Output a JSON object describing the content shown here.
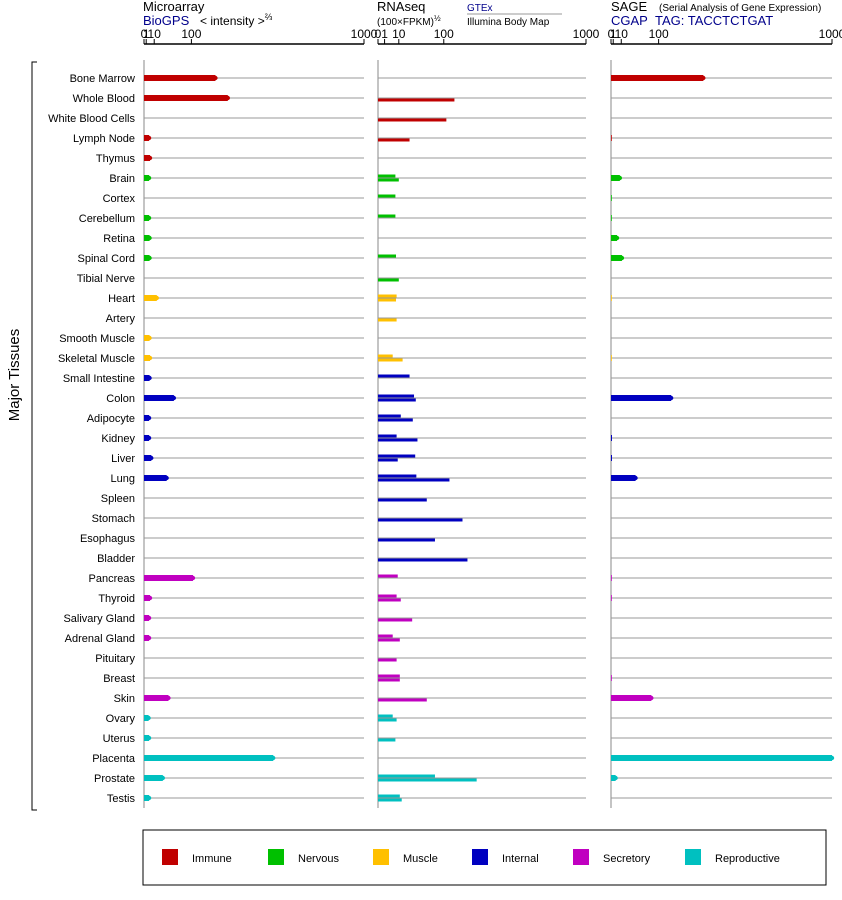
{
  "header": {
    "microarray": {
      "title": "Microarray",
      "source": "BioGPS",
      "unit": "< intensity >",
      "unit_exp": "⅔"
    },
    "rnaseq": {
      "title": "RNAseq",
      "unit": "(100×FPKM)",
      "unit_exp": "½",
      "source_1": "GTEx",
      "source_2": "Illumina Body Map"
    },
    "sage": {
      "title": "SAGE",
      "subtitle": "(Serial Analysis of Gene Expression)",
      "source": "CGAP",
      "tag": "TAG: TACCTCTGAT"
    }
  },
  "y_group_label": "Major Tissues",
  "colors": {
    "Immune": "#c00000",
    "Nervous": "#00c000",
    "Muscle": "#ffc000",
    "Internal": "#0000c0",
    "Secretory": "#c000c0",
    "Reproductive": "#00c0c0"
  },
  "legend": [
    "Immune",
    "Nervous",
    "Muscle",
    "Internal",
    "Secretory",
    "Reproductive"
  ],
  "chart_data": {
    "type": "bar",
    "orientation": "horizontal",
    "scale": "power-transformed (ticks 0, 1, 10, 100, 1000)",
    "ticks": [
      "0",
      "1",
      "10",
      "100",
      "1000"
    ],
    "ticks_num": [
      0,
      1,
      10,
      100,
      1000
    ],
    "xlim": [
      0,
      1000
    ],
    "panels": [
      "Microarray",
      "RNAseq",
      "SAGE"
    ],
    "tissues": [
      {
        "name": "Bone Marrow",
        "group": "Immune",
        "microarray": 185,
        "rnaseq": [],
        "sage": 270
      },
      {
        "name": "Whole Blood",
        "group": "Immune",
        "microarray": 235,
        "rnaseq": [
          0,
          135
        ],
        "sage": 0
      },
      {
        "name": "White Blood Cells",
        "group": "Immune",
        "microarray": 0,
        "rnaseq": [
          0,
          108
        ],
        "sage": 0
      },
      {
        "name": "Lymph Node",
        "group": "Immune",
        "microarray": 3.5,
        "rnaseq": [
          0,
          23
        ],
        "sage": 0.2
      },
      {
        "name": "Thymus",
        "group": "Immune",
        "microarray": 4.5,
        "rnaseq": [],
        "sage": 0
      },
      {
        "name": "Brain",
        "group": "Nervous",
        "microarray": 3.5,
        "rnaseq": [
          7,
          10
        ],
        "sage": 8
      },
      {
        "name": "Cortex",
        "group": "Nervous",
        "microarray": 0,
        "rnaseq": [
          7
        ],
        "sage": 0.1
      },
      {
        "name": "Cerebellum",
        "group": "Nervous",
        "microarray": 3.5,
        "rnaseq": [
          7
        ],
        "sage": 0.1
      },
      {
        "name": "Retina",
        "group": "Nervous",
        "microarray": 4,
        "rnaseq": [],
        "sage": 4.5
      },
      {
        "name": "Spinal Cord",
        "group": "Nervous",
        "microarray": 4,
        "rnaseq": [
          7.5
        ],
        "sage": 11
      },
      {
        "name": "Tibial Nerve",
        "group": "Nervous",
        "microarray": 0,
        "rnaseq": [
          0,
          10
        ],
        "sage": 0
      },
      {
        "name": "Heart",
        "group": "Muscle",
        "microarray": 14,
        "rnaseq": [
          8,
          7.5
        ],
        "sage": 0.05
      },
      {
        "name": "Artery",
        "group": "Muscle",
        "microarray": 0,
        "rnaseq": [
          0,
          8
        ],
        "sage": 0
      },
      {
        "name": "Smooth Muscle",
        "group": "Muscle",
        "microarray": 4,
        "rnaseq": [],
        "sage": 0
      },
      {
        "name": "Skeletal Muscle",
        "group": "Muscle",
        "microarray": 4.5,
        "rnaseq": [
          5,
          14
        ],
        "sage": 0.05
      },
      {
        "name": "Small Intestine",
        "group": "Internal",
        "microarray": 4,
        "rnaseq": [
          23
        ],
        "sage": 0
      },
      {
        "name": "Colon",
        "group": "Internal",
        "microarray": 50,
        "rnaseq": [
          30,
          33
        ],
        "sage": 142
      },
      {
        "name": "Adipocyte",
        "group": "Internal",
        "microarray": 3.5,
        "rnaseq": [
          12,
          28
        ],
        "sage": 0
      },
      {
        "name": "Kidney",
        "group": "Internal",
        "microarray": 3.5,
        "rnaseq": [
          8,
          36
        ],
        "sage": 0.3
      },
      {
        "name": "Liver",
        "group": "Internal",
        "microarray": 6,
        "rnaseq": [
          32,
          9
        ],
        "sage": 0.3
      },
      {
        "name": "Lung",
        "group": "Internal",
        "microarray": 33,
        "rnaseq": [
          34,
          118
        ],
        "sage": 37
      },
      {
        "name": "Spleen",
        "group": "Internal",
        "microarray": 0,
        "rnaseq": [
          0,
          55
        ],
        "sage": 0
      },
      {
        "name": "Stomach",
        "group": "Internal",
        "microarray": 0,
        "rnaseq": [
          0,
          165
        ],
        "sage": 0
      },
      {
        "name": "Esophagus",
        "group": "Internal",
        "microarray": 0,
        "rnaseq": [
          0,
          75
        ],
        "sage": 0
      },
      {
        "name": "Bladder",
        "group": "Internal",
        "microarray": 0,
        "rnaseq": [
          0,
          185
        ],
        "sage": 0
      },
      {
        "name": "Pancreas",
        "group": "Secretory",
        "microarray": 105,
        "rnaseq": [
          9
        ],
        "sage": 0.2
      },
      {
        "name": "Thyroid",
        "group": "Secretory",
        "microarray": 4.5,
        "rnaseq": [
          8,
          12
        ],
        "sage": 0.2
      },
      {
        "name": "Salivary Gland",
        "group": "Secretory",
        "microarray": 3.5,
        "rnaseq": [
          0,
          27
        ],
        "sage": 0
      },
      {
        "name": "Adrenal Gland",
        "group": "Secretory",
        "microarray": 3.5,
        "rnaseq": [
          5,
          11
        ],
        "sage": 0
      },
      {
        "name": "Pituitary",
        "group": "Secretory",
        "microarray": 0,
        "rnaseq": [
          0,
          8
        ],
        "sage": 0
      },
      {
        "name": "Breast",
        "group": "Secretory",
        "microarray": 0,
        "rnaseq": [
          11,
          11
        ],
        "sage": 0.2
      },
      {
        "name": "Skin",
        "group": "Secretory",
        "microarray": 37,
        "rnaseq": [
          0,
          55
        ],
        "sage": 78
      },
      {
        "name": "Ovary",
        "group": "Reproductive",
        "microarray": 3,
        "rnaseq": [
          5,
          8
        ],
        "sage": 0
      },
      {
        "name": "Uterus",
        "group": "Reproductive",
        "microarray": 3.5,
        "rnaseq": [
          0,
          7
        ],
        "sage": 0
      },
      {
        "name": "Placenta",
        "group": "Reproductive",
        "microarray": 450,
        "rnaseq": [],
        "sage": 1000
      },
      {
        "name": "Prostate",
        "group": "Reproductive",
        "microarray": 25,
        "rnaseq": [
          75,
          225
        ],
        "sage": 3
      },
      {
        "name": "Testis",
        "group": "Reproductive",
        "microarray": 3.5,
        "rnaseq": [
          11,
          13
        ],
        "sage": 0
      }
    ]
  }
}
